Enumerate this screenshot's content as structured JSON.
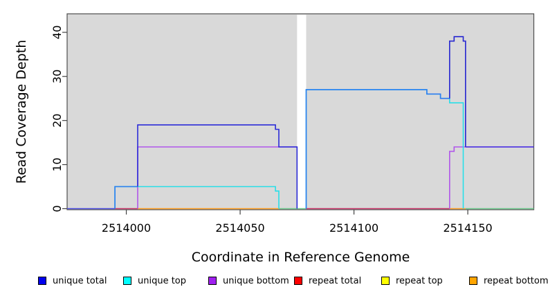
{
  "axes": {
    "x": {
      "label": "Coordinate in Reference Genome",
      "tick_labels": [
        "2514000",
        "2514050",
        "2514100",
        "2514150"
      ],
      "tick_values": [
        2514000,
        2514050,
        2514100,
        2514150
      ],
      "range": [
        2513974,
        2514179
      ]
    },
    "y": {
      "label": "Read Coverage Depth",
      "tick_labels": [
        "0",
        "10",
        "20",
        "30",
        "40"
      ],
      "tick_values": [
        0,
        10,
        20,
        30,
        40
      ],
      "range": [
        0,
        44.2
      ]
    }
  },
  "chart_data": {
    "type": "line",
    "title": "",
    "xlabel": "Coordinate in Reference Genome",
    "ylabel": "Read Coverage Depth",
    "xlim": [
      2513974,
      2514179
    ],
    "ylim": [
      0,
      44.2
    ],
    "grid": false,
    "legend_position": "bottom",
    "plot_bg": "#d9d9d9",
    "border_color": "#4d4d4d",
    "tick_color": "#404040",
    "gap_region": {
      "x_start": 2514075,
      "x_end": 2514079,
      "color": "#ffffff",
      "note": "white vertical band (no coverage) splitting the plot"
    },
    "baseline_overplot": [
      {
        "color": "#6cc98c",
        "points": [
          [
            2514067,
            0
          ],
          [
            2514079,
            0
          ]
        ]
      },
      {
        "color": "#6cc98c",
        "points": [
          [
            2514149,
            0
          ],
          [
            2514179,
            0
          ]
        ]
      }
    ],
    "series": [
      {
        "name": "repeat total",
        "legend_color": "#ff0000",
        "segments": [
          {
            "color": "#c83166",
            "points": [
              [
                2513995,
                0
              ],
              [
                2514005,
                0
              ]
            ]
          },
          {
            "color": "#c83166",
            "points": [
              [
                2514079,
                0
              ],
              [
                2514142,
                0
              ]
            ]
          }
        ]
      },
      {
        "name": "repeat top",
        "legend_color": "#ffff00",
        "segments": []
      },
      {
        "name": "repeat bottom",
        "legend_color": "#ffa500",
        "segments": [
          {
            "color": "#ff9d1e",
            "points": [
              [
                2514005,
                0
              ],
              [
                2514067,
                0
              ]
            ]
          },
          {
            "color": "#ff9d1e",
            "points": [
              [
                2514142,
                0
              ],
              [
                2514149,
                0
              ]
            ]
          }
        ]
      },
      {
        "name": "unique bottom",
        "legend_color": "#a020f0",
        "segments": [
          {
            "color": "#b055ea",
            "points": [
              [
                2514005,
                0
              ],
              [
                2514005,
                14
              ],
              [
                2514075,
                14
              ]
            ]
          },
          {
            "color": "#b055ea",
            "points": [
              [
                2514142,
                0
              ],
              [
                2514142,
                13
              ],
              [
                2514144,
                13
              ],
              [
                2514144,
                14
              ],
              [
                2514179,
                14
              ]
            ]
          }
        ]
      },
      {
        "name": "unique top",
        "legend_color": "#00ffff",
        "segments": [
          {
            "color": "#27dfe8",
            "points": [
              [
                2513995,
                0
              ],
              [
                2513995,
                5
              ],
              [
                2514065.5,
                5
              ],
              [
                2514065.5,
                4
              ],
              [
                2514067,
                4
              ],
              [
                2514067,
                0
              ]
            ]
          },
          {
            "color": "#27dfe8",
            "points": [
              [
                2514079,
                0
              ],
              [
                2514079,
                27
              ],
              [
                2514132,
                27
              ],
              [
                2514132,
                26
              ],
              [
                2514138,
                26
              ],
              [
                2514138,
                25
              ],
              [
                2514142,
                25
              ],
              [
                2514142,
                24
              ],
              [
                2514148,
                24
              ],
              [
                2514148,
                0
              ]
            ]
          }
        ]
      },
      {
        "name": "unique total",
        "legend_color": "#0000ee",
        "segments": [
          {
            "color": "#4a4ae0",
            "points": [
              [
                2513974,
                0
              ],
              [
                2513995,
                0
              ]
            ]
          },
          {
            "color": "#2e7cf0",
            "points": [
              [
                2513995,
                0
              ],
              [
                2513995,
                5
              ],
              [
                2514005,
                5
              ]
            ]
          },
          {
            "color": "#2b2bd8",
            "points": [
              [
                2514005,
                5
              ],
              [
                2514005,
                19
              ],
              [
                2514065.5,
                19
              ],
              [
                2514065.5,
                18
              ],
              [
                2514067,
                18
              ],
              [
                2514067,
                14
              ],
              [
                2514075,
                14
              ],
              [
                2514075,
                0
              ]
            ]
          },
          {
            "color": "#2e7cf0",
            "points": [
              [
                2514079,
                0
              ],
              [
                2514079,
                27
              ],
              [
                2514132,
                27
              ],
              [
                2514132,
                26
              ],
              [
                2514138,
                26
              ],
              [
                2514138,
                25
              ],
              [
                2514142,
                25
              ]
            ]
          },
          {
            "color": "#2525d0",
            "points": [
              [
                2514142,
                25
              ],
              [
                2514142,
                38
              ],
              [
                2514144,
                38
              ],
              [
                2514144,
                39
              ],
              [
                2514148,
                39
              ],
              [
                2514148,
                38
              ],
              [
                2514149,
                38
              ],
              [
                2514149,
                14
              ]
            ]
          },
          {
            "color": "#4335e0",
            "points": [
              [
                2514149,
                14
              ],
              [
                2514179,
                14
              ]
            ]
          }
        ]
      }
    ]
  },
  "legend": {
    "items": [
      {
        "label": "unique total",
        "color": "#0000ee"
      },
      {
        "label": "unique top",
        "color": "#00ffff"
      },
      {
        "label": "unique bottom",
        "color": "#a020f0"
      },
      {
        "label": "repeat total",
        "color": "#ff0000"
      },
      {
        "label": "repeat top",
        "color": "#ffff00"
      },
      {
        "label": "repeat bottom",
        "color": "#ffa500"
      }
    ]
  }
}
